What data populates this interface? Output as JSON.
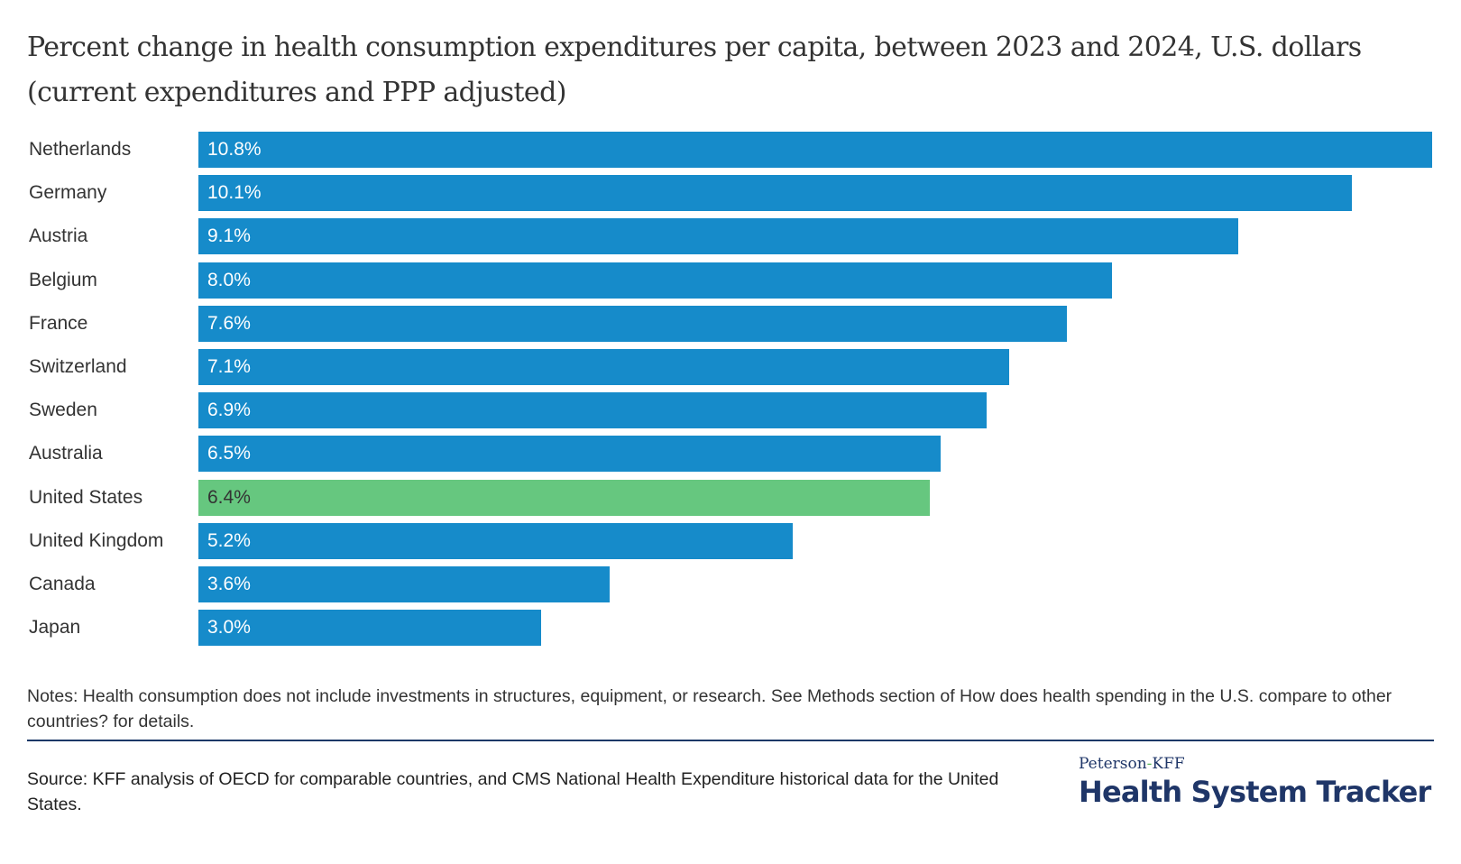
{
  "title": "Percent change in health consumption expenditures per capita, between 2023 and 2024, U.S. dollars (current expenditures and PPP adjusted)",
  "colors": {
    "default_bar": "#168bca",
    "highlight_bar": "#66c77f",
    "default_label": "#ffffff",
    "highlight_label": "#333333"
  },
  "chart_data": {
    "type": "bar",
    "orientation": "horizontal",
    "title": "Percent change in health consumption expenditures per capita, between 2023 and 2024, U.S. dollars (current expenditures and PPP adjusted)",
    "xlabel": "",
    "ylabel": "",
    "xlim": [
      0,
      10.8
    ],
    "grid": false,
    "categories": [
      "Netherlands",
      "Germany",
      "Austria",
      "Belgium",
      "France",
      "Switzerland",
      "Sweden",
      "Australia",
      "United States",
      "United Kingdom",
      "Canada",
      "Japan"
    ],
    "values": [
      10.8,
      10.1,
      9.1,
      8.0,
      7.6,
      7.1,
      6.9,
      6.5,
      6.4,
      5.2,
      3.6,
      3.0
    ],
    "data_labels": [
      "10.8%",
      "10.1%",
      "9.1%",
      "8.0%",
      "7.6%",
      "7.1%",
      "6.9%",
      "6.5%",
      "6.4%",
      "5.2%",
      "3.6%",
      "3.0%"
    ],
    "highlight": [
      "United States"
    ]
  },
  "notes": "Notes: Health consumption does not include investments in structures, equipment, or research. See Methods section of How does health spending in the U.S. compare to other countries? for details.",
  "source": "Source: KFF analysis of OECD for comparable countries, and CMS National Health Expenditure historical data for the United States.",
  "logo": {
    "top_part1": "Peterson",
    "top_dash": "-",
    "top_part2": "KFF",
    "main": "Health System Tracker"
  }
}
